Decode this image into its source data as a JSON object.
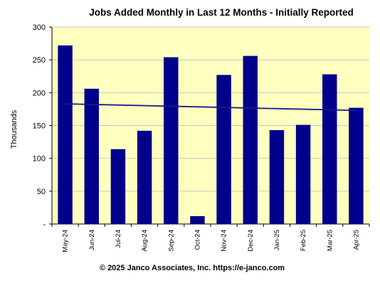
{
  "chart_data": {
    "type": "bar",
    "title": "Jobs Added Monthly in Last 12 Months - Initially Reported",
    "ylabel": "Thousands",
    "xlabel": "",
    "categories": [
      "May-24",
      "Jun-24",
      "Jul-24",
      "Aug-24",
      "Sep-24",
      "Oct-24",
      "Nov-24",
      "Dec-24",
      "Jan-25",
      "Feb-25",
      "Mar-25",
      "Apr-25"
    ],
    "values": [
      272,
      206,
      114,
      142,
      254,
      12,
      227,
      256,
      143,
      151,
      228,
      177
    ],
    "ylim": [
      0,
      300
    ],
    "yticks": [
      0,
      50,
      100,
      150,
      200,
      250,
      300
    ],
    "ytick_labels": [
      "-",
      "50",
      "100",
      "150",
      "200",
      "250",
      "300"
    ],
    "trendline": {
      "start": 183,
      "end": 173
    },
    "grid": true,
    "legend": "none",
    "colors": {
      "bar": "#00008b",
      "trend": "#1a1a8c",
      "plot_background": "#ffffc0",
      "grid": "#c8c8c8"
    },
    "footer": "© 2025 Janco Associates, Inc. https://e-janco.com"
  }
}
